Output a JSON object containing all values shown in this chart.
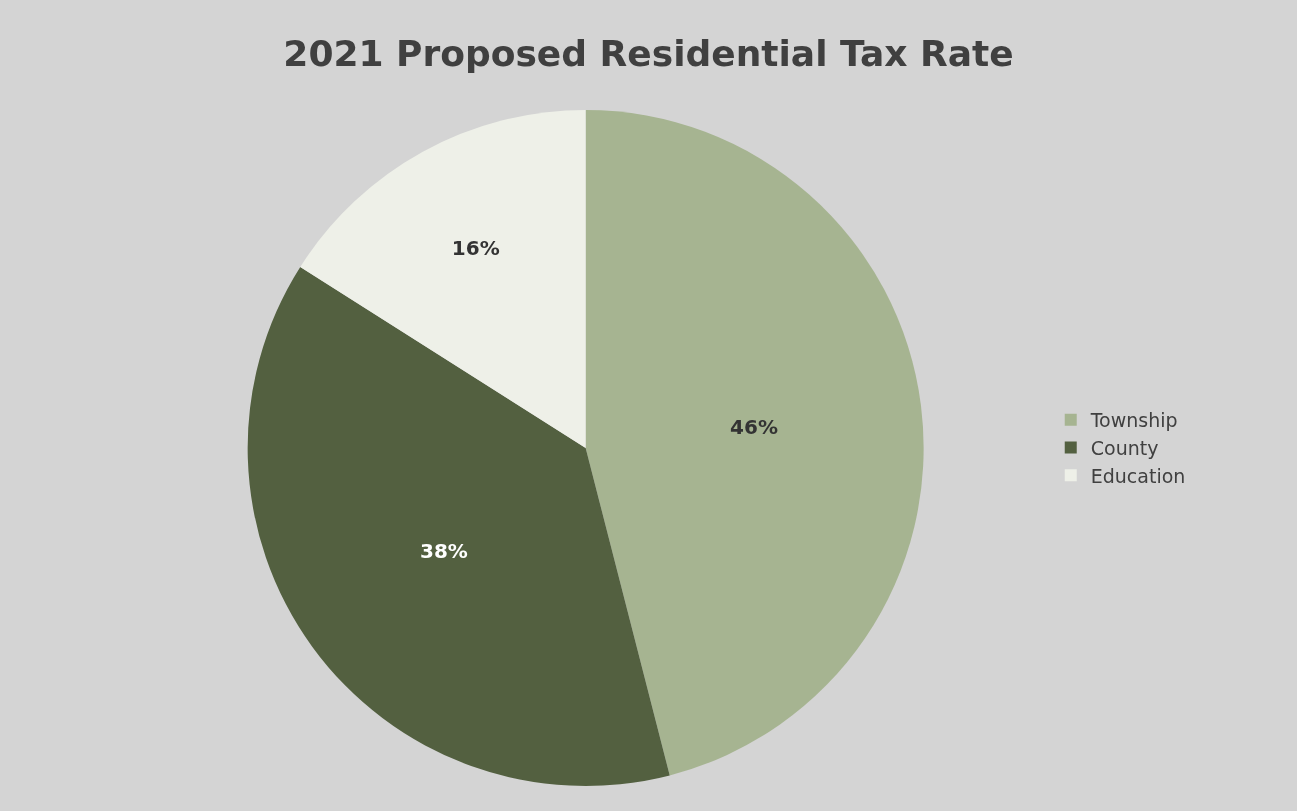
{
  "chart_data": {
    "type": "pie",
    "title": "2021 Proposed Residential Tax Rate",
    "categories": [
      "Township",
      "County",
      "Education"
    ],
    "values": [
      46,
      38,
      16
    ],
    "colors": [
      "#a6b491",
      "#536040",
      "#eef0e8"
    ],
    "value_labels": [
      "46%",
      "38%",
      "16%"
    ],
    "legend": "right"
  }
}
